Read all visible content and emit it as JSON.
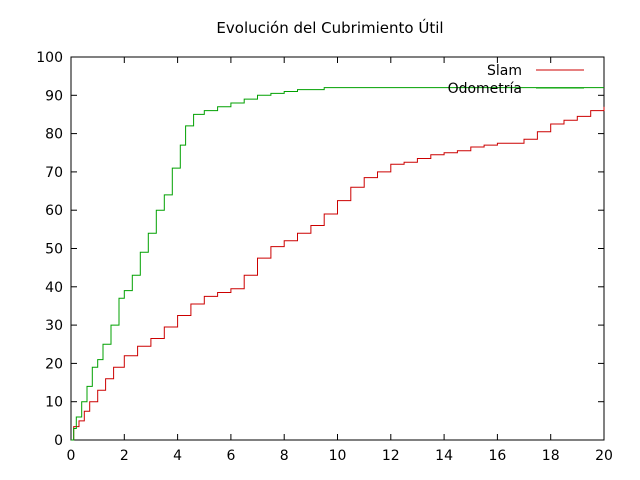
{
  "chart_data": {
    "type": "line",
    "title": "Evolución del Cubrimiento Útil",
    "xlabel": "",
    "ylabel": "",
    "xlim": [
      0,
      20
    ],
    "ylim": [
      0,
      100
    ],
    "x_ticks": [
      0,
      2,
      4,
      6,
      8,
      10,
      12,
      14,
      16,
      18,
      20
    ],
    "y_ticks": [
      0,
      10,
      20,
      30,
      40,
      50,
      60,
      70,
      80,
      90,
      100
    ],
    "grid": false,
    "legend_position": "top-right",
    "series": [
      {
        "name": "Slam",
        "color": "#cc0000",
        "x": [
          0,
          0.1,
          0.3,
          0.5,
          0.7,
          1.0,
          1.3,
          1.6,
          2.0,
          2.5,
          3.0,
          3.5,
          4.0,
          4.5,
          5.0,
          5.5,
          6.0,
          6.5,
          7.0,
          7.5,
          8.0,
          8.5,
          9.0,
          9.5,
          10.0,
          10.5,
          11.0,
          11.5,
          12.0,
          12.5,
          13.0,
          13.5,
          14.0,
          14.5,
          15.0,
          15.5,
          16.0,
          16.5,
          17.0,
          17.5,
          18.0,
          18.5,
          19.0,
          19.5,
          20.0
        ],
        "y": [
          0,
          3.5,
          5,
          7.5,
          10,
          13,
          16,
          19,
          22,
          24.5,
          26.5,
          29.5,
          32.5,
          35.5,
          37.5,
          38.5,
          39.5,
          43,
          47.5,
          50.5,
          52,
          54,
          56,
          59,
          62.5,
          66,
          68.5,
          70,
          72,
          72.5,
          73.5,
          74.5,
          75,
          75.5,
          76.5,
          77,
          77.5,
          77.5,
          78.5,
          80.5,
          82.5,
          83.5,
          84.5,
          86,
          87
        ]
      },
      {
        "name": "Odometría",
        "color": "#00a000",
        "x": [
          0,
          0.1,
          0.2,
          0.4,
          0.6,
          0.8,
          1.0,
          1.2,
          1.5,
          1.8,
          2.0,
          2.3,
          2.6,
          2.9,
          3.2,
          3.5,
          3.8,
          4.1,
          4.3,
          4.6,
          5.0,
          5.5,
          6.0,
          6.5,
          7.0,
          7.5,
          8.0,
          8.5,
          9.0,
          9.5,
          10.0,
          11.0,
          12.0,
          13.0,
          14.0,
          15.0,
          16.0,
          17.0,
          18.0,
          19.0,
          20.0
        ],
        "y": [
          0,
          3,
          6,
          10,
          14,
          19,
          21,
          25,
          30,
          37,
          39,
          43,
          49,
          54,
          60,
          64,
          71,
          77,
          82,
          85,
          86,
          87,
          88,
          89,
          90,
          90.5,
          91,
          91.5,
          91.5,
          92,
          92,
          92,
          92,
          92,
          92,
          92,
          92,
          92,
          92,
          92,
          92
        ]
      }
    ]
  }
}
